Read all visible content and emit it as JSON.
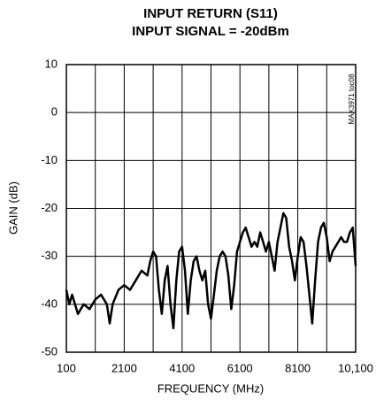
{
  "chart_data": {
    "type": "line",
    "title": "INPUT RETURN (S11)",
    "subtitle": "INPUT SIGNAL = -20dBm",
    "note": "MAX3971 toc08",
    "x_label": "FREQUENCY (MHz)",
    "y_label": "GAIN (dB)",
    "x": [
      100,
      200,
      300,
      500,
      700,
      900,
      1100,
      1300,
      1500,
      1600,
      1700,
      1900,
      2100,
      2300,
      2500,
      2700,
      2900,
      3000,
      3100,
      3200,
      3300,
      3400,
      3500,
      3600,
      3700,
      3800,
      3900,
      4000,
      4100,
      4200,
      4300,
      4400,
      4500,
      4600,
      4700,
      4800,
      4900,
      5000,
      5100,
      5200,
      5300,
      5400,
      5500,
      5600,
      5700,
      5800,
      5900,
      6000,
      6100,
      6200,
      6300,
      6400,
      6500,
      6600,
      6700,
      6800,
      6900,
      7000,
      7100,
      7200,
      7300,
      7400,
      7500,
      7600,
      7700,
      7800,
      7900,
      8000,
      8100,
      8200,
      8300,
      8400,
      8500,
      8600,
      8700,
      8800,
      8900,
      9000,
      9100,
      9200,
      9300,
      9400,
      9500,
      9600,
      9700,
      9800,
      9900,
      10000,
      10100
    ],
    "series": [
      {
        "name": "S11",
        "color": "#000000",
        "values": [
          -37,
          -40,
          -38,
          -42,
          -40,
          -41,
          -39,
          -38,
          -40,
          -44,
          -40,
          -37,
          -36,
          -37,
          -35,
          -33,
          -34,
          -31,
          -29,
          -30,
          -37,
          -42,
          -35,
          -32,
          -40,
          -45,
          -35,
          -29,
          -28,
          -33,
          -42,
          -35,
          -31,
          -30,
          -33,
          -35,
          -33,
          -40,
          -43,
          -38,
          -33,
          -30,
          -29,
          -30,
          -34,
          -41,
          -36,
          -29,
          -27,
          -25,
          -24,
          -26,
          -28,
          -27,
          -28,
          -25,
          -27,
          -29,
          -27,
          -30,
          -33,
          -27,
          -24,
          -21,
          -22,
          -28,
          -31,
          -35,
          -30,
          -26,
          -27,
          -32,
          -38,
          -44,
          -35,
          -27,
          -24,
          -23,
          -26,
          -31,
          -29,
          -28,
          -27,
          -26,
          -27,
          -27,
          -25,
          -24,
          -32
        ]
      }
    ],
    "xlim": [
      100,
      10100
    ],
    "xticks": [
      100,
      2100,
      4100,
      6100,
      8100,
      {
        "value": 10100,
        "label": "10,100"
      }
    ],
    "xminor_ticks": [
      1100,
      3100,
      5100,
      7100,
      9100
    ],
    "ylim": [
      -50,
      10
    ],
    "yticks": [
      -50,
      -40,
      -30,
      -20,
      -10,
      0,
      10
    ],
    "grid": true
  }
}
